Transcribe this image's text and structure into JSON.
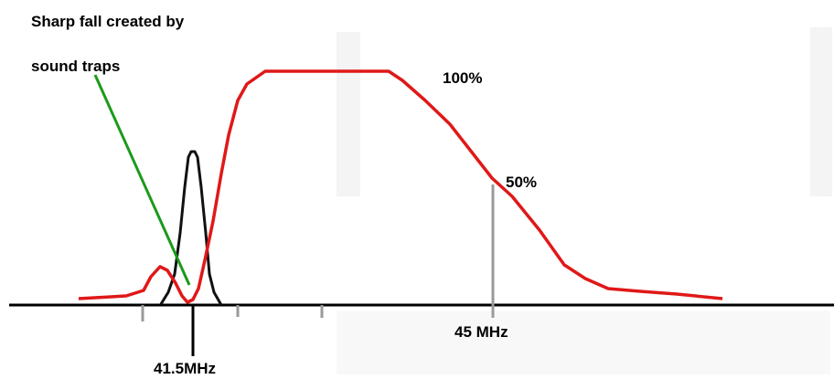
{
  "annotation": {
    "line1": "Sharp fall created by",
    "line2": "sound traps"
  },
  "labels": {
    "percent_100": "100%",
    "percent_50": "50%",
    "freq_45": "45 MHz",
    "freq_41_5": "41.5MHz"
  },
  "colors": {
    "response_curve": "#e01818",
    "sound_carrier_peak": "#111111",
    "annotation_arrow": "#1a9a1a",
    "axis": "#000000",
    "ticks": "#9a9a9a"
  }
}
